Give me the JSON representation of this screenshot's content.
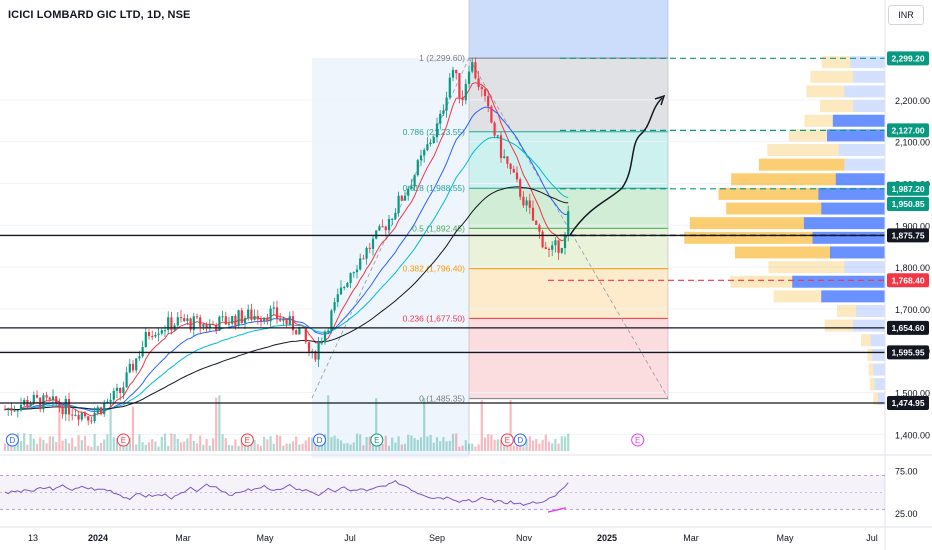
{
  "title": "ICICI LOMBARD GIC LTD, 1D, NSE",
  "currency": "INR",
  "colors": {
    "candle_up": "#089981",
    "candle_down": "#f23645",
    "ema_fast": "#f23645",
    "ema_mid": "#2962ff",
    "ema_slow": "#00bcd4",
    "ema_long": "#131722",
    "rsi_line": "#7e57c2",
    "target_dash": "#089981",
    "stop_dash": "#f23645"
  },
  "chart_data": {
    "type": "candlestick",
    "ylim": [
      1400,
      2350
    ],
    "y_ticks": [
      "1,400.00",
      "1,500.00",
      "1,600.00",
      "1,700.00",
      "1,800.00",
      "1,900.00",
      "2,000.00",
      "2,100.00",
      "2,200.00"
    ],
    "y_tick_values": [
      1400,
      1500,
      1600,
      1700,
      1800,
      1900,
      2000,
      2100,
      2200
    ],
    "x_ticks": [
      "13",
      "2024",
      "Mar",
      "May",
      "Jul",
      "Sep",
      "Nov",
      "2025",
      "Mar",
      "May",
      "Jul"
    ],
    "fib_levels": [
      {
        "label": "1 (2,299.60)",
        "value": 2299.6,
        "color": "#787b86"
      },
      {
        "label": "0.786 (2,123.55)",
        "value": 2123.55,
        "color": "#26a69a"
      },
      {
        "label": "0.618 (1,988.55)",
        "value": 1988.55,
        "color": "#26a69a"
      },
      {
        "label": "0.5 (1,892.45)",
        "value": 1892.45,
        "color": "#4caf50"
      },
      {
        "label": "0.382 (1,796.40)",
        "value": 1796.4,
        "color": "#ff9800"
      },
      {
        "label": "0.236 (1,677.50)",
        "value": 1677.5,
        "color": "#f23645"
      },
      {
        "label": "0 (1,485.35)",
        "value": 1485.35,
        "color": "#787b86"
      }
    ],
    "price_labels": [
      {
        "text": "2,299.20",
        "value": 2299.2,
        "bg": "#089981"
      },
      {
        "text": "2,127.00",
        "value": 2127.0,
        "bg": "#089981"
      },
      {
        "text": "1,987.20",
        "value": 1987.2,
        "bg": "#089981"
      },
      {
        "text": "1,950.85",
        "value": 1950.85,
        "bg": "#089981"
      },
      {
        "text": "1,875.75",
        "value": 1875.75,
        "bg": "#131722"
      },
      {
        "text": "1,768.40",
        "value": 1768.4,
        "bg": "#f23645"
      },
      {
        "text": "1,654.60",
        "value": 1654.6,
        "bg": "#131722"
      },
      {
        "text": "1,595.95",
        "value": 1595.95,
        "bg": "#131722"
      },
      {
        "text": "1,474.95",
        "value": 1474.95,
        "bg": "#131722"
      }
    ],
    "horizontal_lines": [
      1875.75,
      1654.6,
      1595.95,
      1474.95
    ],
    "target_dashed": [
      2299.2,
      2127.0,
      1987.2
    ],
    "entry_dashed": 1875.75,
    "stop_dashed": 1768.4,
    "volume_profile": [
      {
        "price": 2290,
        "buy": 30,
        "sell": 60
      },
      {
        "price": 2255,
        "buy": 45,
        "sell": 55
      },
      {
        "price": 2220,
        "buy": 40,
        "sell": 70
      },
      {
        "price": 2185,
        "buy": 35,
        "sell": 55
      },
      {
        "price": 2150,
        "buy": 30,
        "sell": 90
      },
      {
        "price": 2115,
        "buy": 40,
        "sell": 100
      },
      {
        "price": 2080,
        "buy": 75,
        "sell": 80
      },
      {
        "price": 2045,
        "buy": 90,
        "sell": 70
      },
      {
        "price": 2010,
        "buy": 110,
        "sell": 85
      },
      {
        "price": 1975,
        "buy": 105,
        "sell": 115
      },
      {
        "price": 1940,
        "buy": 100,
        "sell": 110
      },
      {
        "price": 1905,
        "buy": 120,
        "sell": 140
      },
      {
        "price": 1870,
        "buy": 135,
        "sell": 125
      },
      {
        "price": 1835,
        "buy": 100,
        "sell": 95
      },
      {
        "price": 1800,
        "buy": 80,
        "sell": 70
      },
      {
        "price": 1765,
        "buy": 65,
        "sell": 160
      },
      {
        "price": 1730,
        "buy": 50,
        "sell": 110
      },
      {
        "price": 1695,
        "buy": 20,
        "sell": 50
      },
      {
        "price": 1660,
        "buy": 30,
        "sell": 55
      },
      {
        "price": 1625,
        "buy": 10,
        "sell": 25
      },
      {
        "price": 1590,
        "buy": 5,
        "sell": 22
      },
      {
        "price": 1555,
        "buy": 5,
        "sell": 20
      },
      {
        "price": 1520,
        "buy": 5,
        "sell": 18
      },
      {
        "price": 1485,
        "buy": 5,
        "sell": 12
      }
    ],
    "event_markers": [
      {
        "label": "D",
        "x_frac": 0.008,
        "color": "#2962ff"
      },
      {
        "label": "E",
        "x_frac": 0.128,
        "color": "#f23645"
      },
      {
        "label": "E",
        "x_frac": 0.262,
        "color": "#f23645"
      },
      {
        "label": "D",
        "x_frac": 0.34,
        "color": "#2962ff"
      },
      {
        "label": "E",
        "x_frac": 0.402,
        "color": "#089981"
      },
      {
        "label": "E",
        "x_frac": 0.543,
        "color": "#f23645"
      },
      {
        "label": "D",
        "x_frac": 0.557,
        "color": "#2962ff"
      },
      {
        "label": "E",
        "x_frac": 0.684,
        "color": "#e040fb"
      }
    ],
    "rsi": {
      "labels": [
        "75.00",
        "25.00"
      ],
      "label_values": [
        75,
        25
      ],
      "upper_band": 70,
      "lower_band": 30
    }
  }
}
